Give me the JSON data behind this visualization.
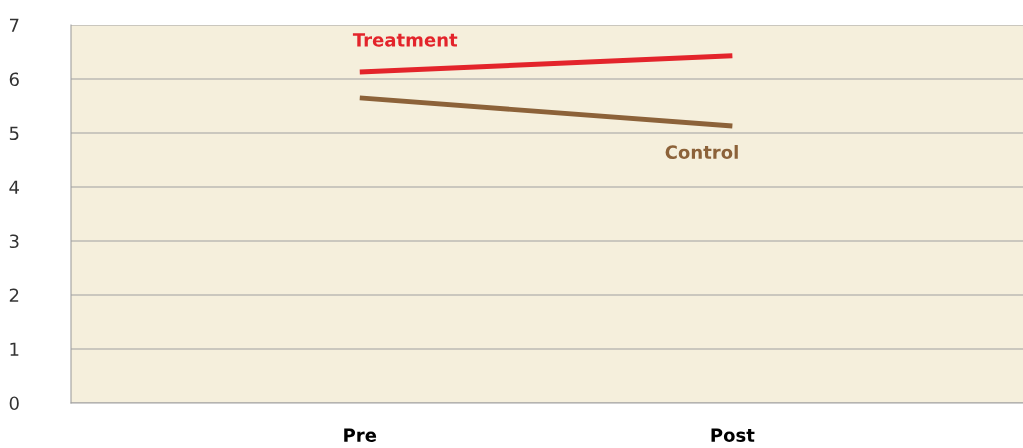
{
  "chart_data": {
    "type": "line",
    "categories": [
      "Pre",
      "Post"
    ],
    "series": [
      {
        "name": "Treatment",
        "color": "#e3242b",
        "values": [
          6.13,
          6.43
        ]
      },
      {
        "name": "Control",
        "color": "#8c6239",
        "values": [
          5.65,
          5.13
        ]
      }
    ],
    "ylim": [
      0,
      7
    ],
    "yticks": [
      0,
      1,
      2,
      3,
      4,
      5,
      6,
      7
    ],
    "grid": "y",
    "legend": false,
    "marker": "none",
    "line_style": "solid"
  }
}
